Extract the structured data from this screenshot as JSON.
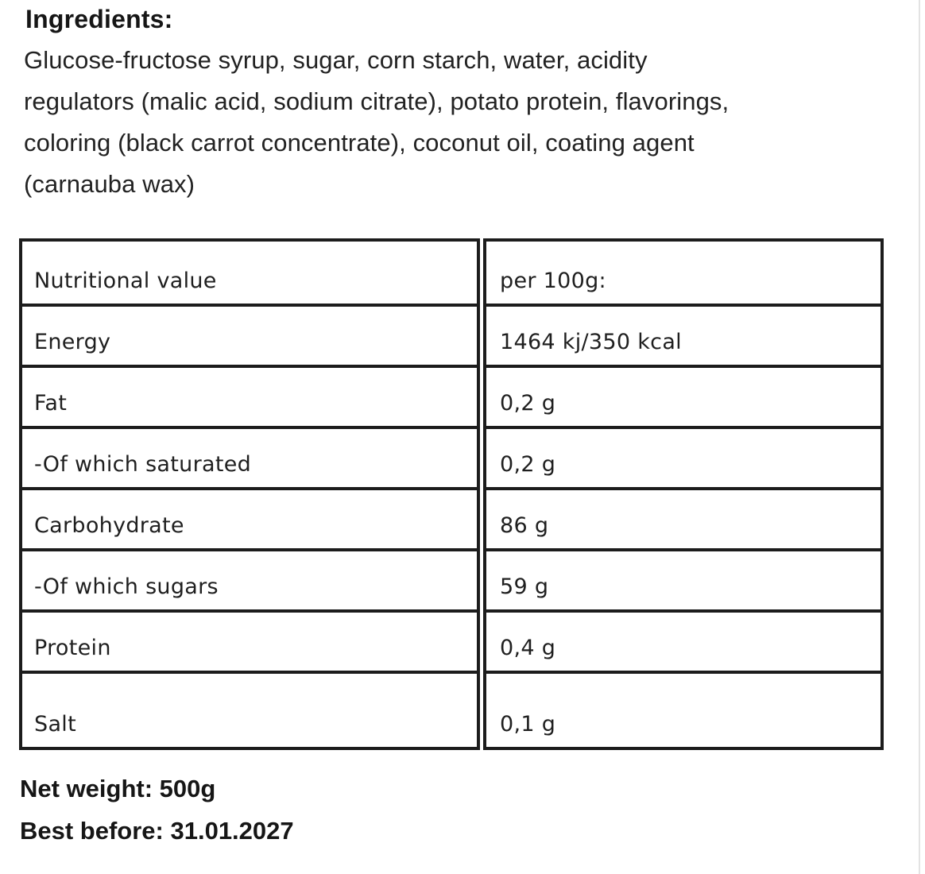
{
  "ingredients": {
    "heading": "Ingredients:",
    "lines": [
      "Glucose-fructose syrup, sugar, corn starch, water, acidity",
      "regulators (malic acid, sodium citrate), potato protein, flavorings,",
      "coloring (black carrot concentrate), coconut oil, coating agent",
      "(carnauba wax)"
    ]
  },
  "nutrition_table": {
    "header": {
      "label": "Nutritional value",
      "value": "per 100g:"
    },
    "rows": [
      {
        "label": "Energy",
        "value": "1464 kj/350 kcal"
      },
      {
        "label": "Fat",
        "value": "0,2 g"
      },
      {
        "label": "-Of which saturated",
        "value": "0,2 g"
      },
      {
        "label": "Carbohydrate",
        "value": "86 g"
      },
      {
        "label": "-Of which sugars",
        "value": "59 g"
      },
      {
        "label": "Protein",
        "value": "0,4 g"
      },
      {
        "label": "Salt",
        "value": "0,1 g"
      }
    ]
  },
  "footer": {
    "net_weight": "Net weight: 500g",
    "best_before": "Best before: 31.01.2027"
  },
  "colors": {
    "background": "#ffffff",
    "text": "#1e1e1e",
    "table_border": "#1c1c1c",
    "edge_line": "#e3e3e3"
  }
}
